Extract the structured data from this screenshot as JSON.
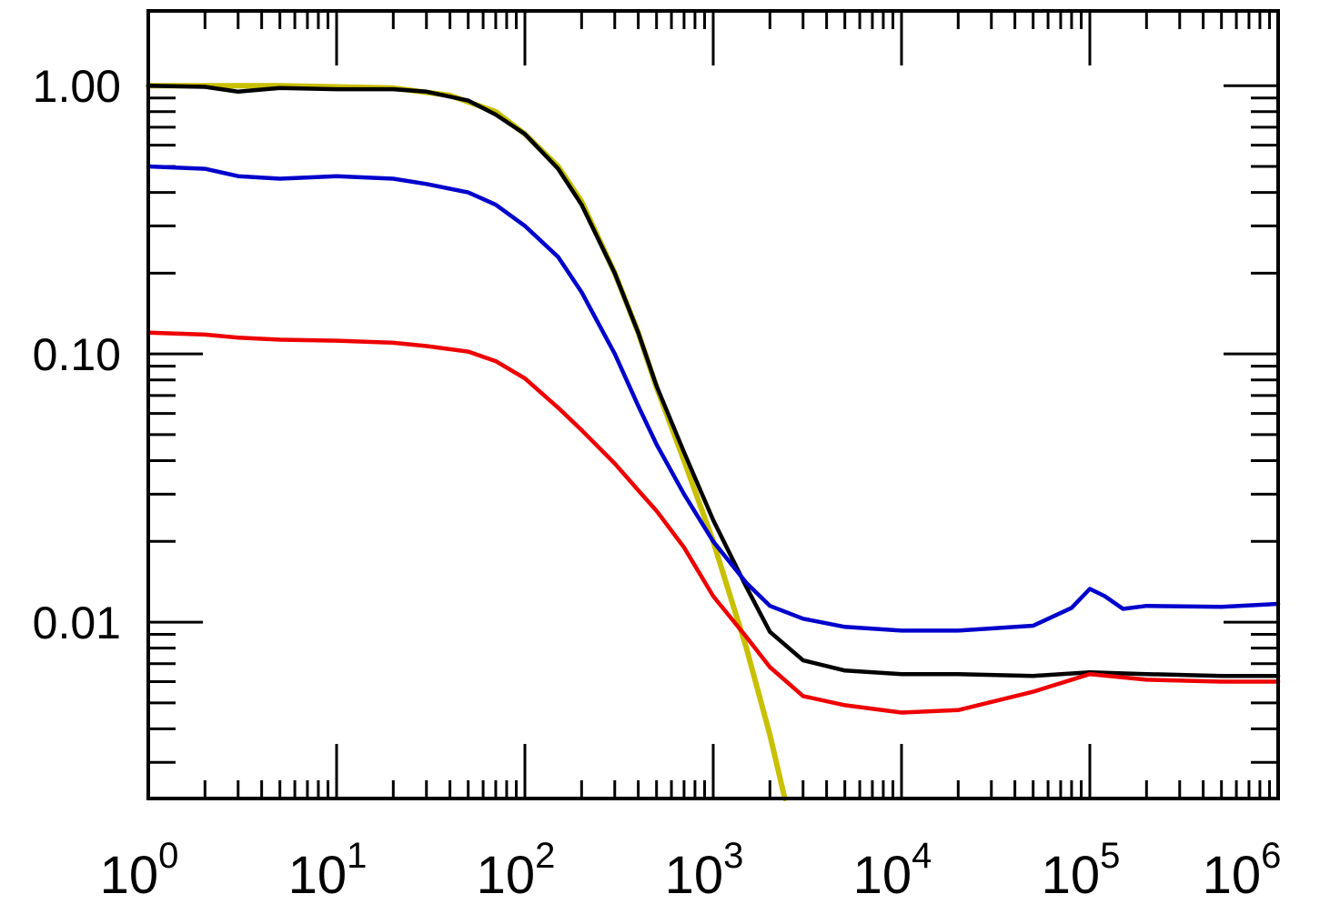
{
  "chart_data": {
    "type": "line",
    "x_scale": "log",
    "y_scale": "log",
    "xlim": [
      1,
      1000000
    ],
    "ylim": [
      0.0022,
      1.9
    ],
    "x_ticks": [
      {
        "value": 1,
        "base": "10",
        "exp": "0"
      },
      {
        "value": 10,
        "base": "10",
        "exp": "1"
      },
      {
        "value": 100,
        "base": "10",
        "exp": "2"
      },
      {
        "value": 1000,
        "base": "10",
        "exp": "3"
      },
      {
        "value": 10000,
        "base": "10",
        "exp": "4"
      },
      {
        "value": 100000,
        "base": "10",
        "exp": "5"
      },
      {
        "value": 1000000,
        "base": "10",
        "exp": "6"
      }
    ],
    "y_ticks": [
      {
        "value": 1,
        "label": "1.00"
      },
      {
        "value": 0.1,
        "label": "0.10"
      },
      {
        "value": 0.01,
        "label": "0.01"
      }
    ],
    "grid": false,
    "legend": "none",
    "series": [
      {
        "color": "#c8c000",
        "x": [
          1,
          2,
          5,
          10,
          20,
          40,
          70,
          100,
          150,
          200,
          300,
          400,
          500,
          700,
          1000,
          1500,
          2000,
          2400
        ],
        "y": [
          1.0,
          1.0,
          1.0,
          0.99,
          0.98,
          0.92,
          0.8,
          0.66,
          0.5,
          0.37,
          0.2,
          0.12,
          0.075,
          0.04,
          0.02,
          0.008,
          0.0038,
          0.0022
        ]
      },
      {
        "color": "#000000",
        "x": [
          1,
          2,
          3,
          5,
          10,
          20,
          30,
          50,
          70,
          100,
          150,
          200,
          300,
          400,
          500,
          700,
          1000,
          1500,
          2000,
          3000,
          5000,
          10000,
          20000,
          50000,
          100000,
          200000,
          500000,
          1000000
        ],
        "y": [
          1.0,
          0.99,
          0.95,
          0.98,
          0.97,
          0.97,
          0.95,
          0.88,
          0.78,
          0.66,
          0.49,
          0.36,
          0.2,
          0.12,
          0.076,
          0.043,
          0.024,
          0.0135,
          0.0092,
          0.0072,
          0.0066,
          0.0064,
          0.0064,
          0.0063,
          0.0065,
          0.0064,
          0.0063,
          0.0063
        ]
      },
      {
        "color": "#0000cc",
        "x": [
          1,
          2,
          3,
          5,
          10,
          20,
          30,
          50,
          70,
          100,
          150,
          200,
          300,
          400,
          500,
          700,
          1000,
          1500,
          2000,
          3000,
          5000,
          10000,
          20000,
          50000,
          80000,
          100000,
          120000,
          150000,
          200000,
          500000,
          1000000
        ],
        "y": [
          0.5,
          0.49,
          0.46,
          0.45,
          0.46,
          0.45,
          0.43,
          0.4,
          0.36,
          0.3,
          0.23,
          0.17,
          0.1,
          0.064,
          0.046,
          0.03,
          0.02,
          0.014,
          0.0115,
          0.0103,
          0.0096,
          0.0093,
          0.0093,
          0.0097,
          0.0113,
          0.0133,
          0.0125,
          0.0112,
          0.0115,
          0.0114,
          0.0117
        ]
      },
      {
        "color": "#ee0000",
        "x": [
          1,
          2,
          3,
          5,
          10,
          20,
          30,
          50,
          70,
          100,
          150,
          200,
          300,
          400,
          500,
          700,
          1000,
          1500,
          2000,
          3000,
          5000,
          10000,
          20000,
          50000,
          100000,
          200000,
          500000,
          1000000
        ],
        "y": [
          0.12,
          0.118,
          0.115,
          0.113,
          0.112,
          0.11,
          0.107,
          0.102,
          0.094,
          0.081,
          0.063,
          0.052,
          0.039,
          0.031,
          0.026,
          0.019,
          0.0125,
          0.0088,
          0.0068,
          0.0053,
          0.0049,
          0.0046,
          0.0047,
          0.0055,
          0.0064,
          0.0061,
          0.006,
          0.006
        ]
      }
    ]
  }
}
